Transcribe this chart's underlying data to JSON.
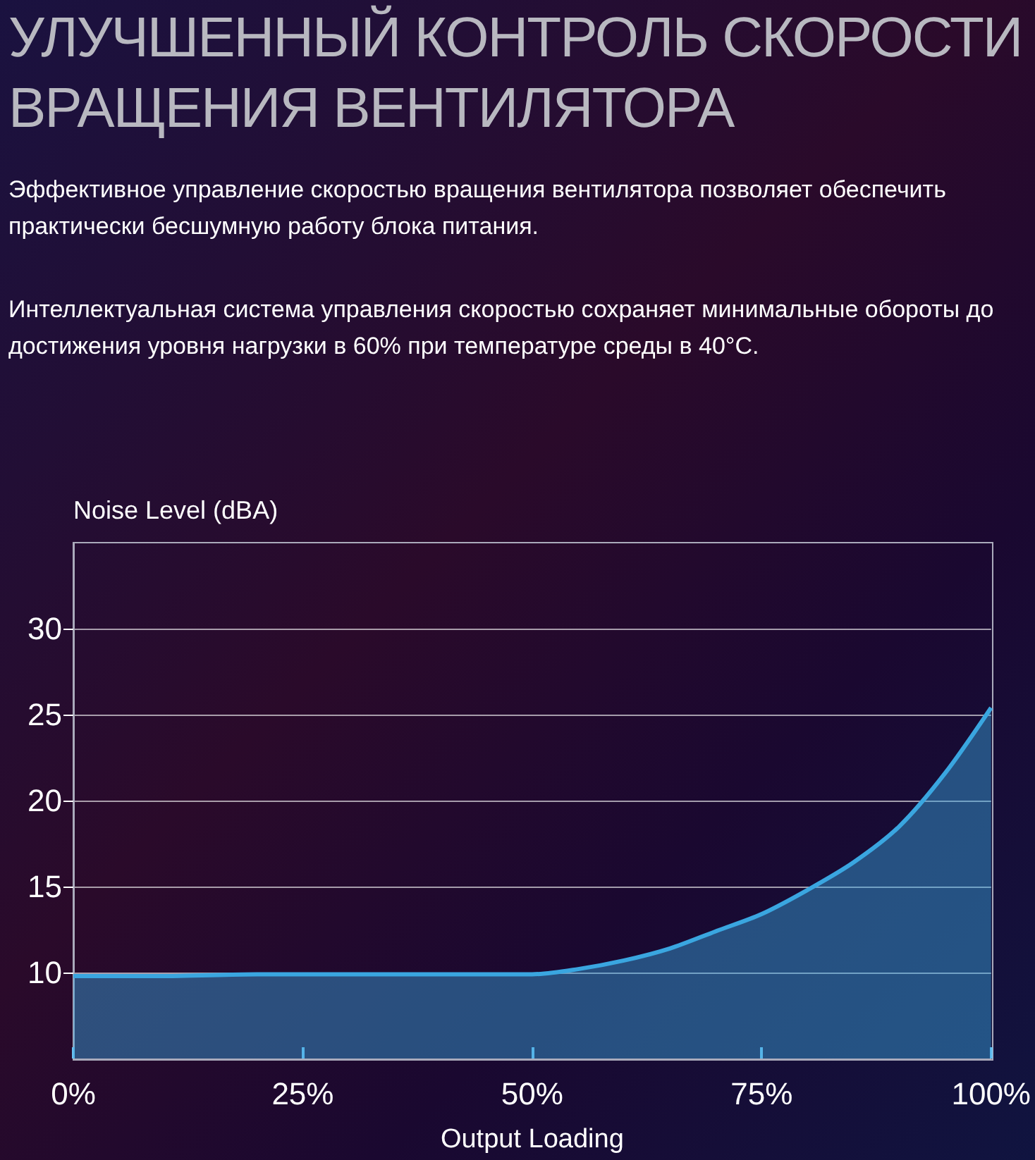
{
  "chart_data": {
    "type": "area",
    "title": "УЛУЧШЕННЫЙ КОНТРОЛЬ СКОРОСТИ ВРАЩЕНИЯ ВЕНТИЛЯТОРА",
    "subtitle": "Эффективное управление скоростью вращения вентилятора позволяет обеспечить практически бесшумную работу блока питания.",
    "annotations": [
      "Интеллектуальная система управления скоростью сохраняет минимальные обороты до достижения уровня нагрузки в 60% при температуре среды в 40°C."
    ],
    "xlabel": "Output Loading",
    "ylabel": "Noise Level (dBA)",
    "x": [
      0,
      10,
      20,
      30,
      40,
      50,
      55,
      60,
      65,
      70,
      75,
      80,
      85,
      90,
      95,
      100
    ],
    "series": [
      {
        "color": "#3aa6e0",
        "values": [
          9.8,
          9.8,
          9.9,
          9.9,
          9.9,
          9.9,
          10.2,
          10.7,
          11.4,
          12.4,
          13.4,
          14.8,
          16.4,
          18.5,
          21.6,
          25.4
        ]
      }
    ],
    "xlim": [
      0,
      100
    ],
    "xticks": [
      {
        "value": 0,
        "label": "0%"
      },
      {
        "value": 25,
        "label": "25%"
      },
      {
        "value": 50,
        "label": "50%"
      },
      {
        "value": 75,
        "label": "75%"
      },
      {
        "value": 100,
        "label": "100%"
      }
    ],
    "ylim": [
      5,
      35
    ],
    "yticks": [
      10,
      15,
      20,
      25,
      30
    ],
    "grid": "y",
    "marker": "none",
    "line_style": "solid"
  }
}
